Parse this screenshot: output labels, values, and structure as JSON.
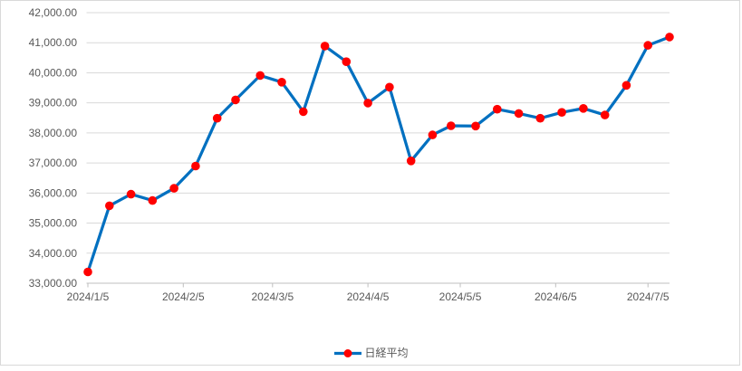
{
  "chart_data": {
    "type": "line",
    "title": "",
    "series": [
      {
        "name": "日経平均",
        "x": [
          "2024/1/5",
          "2024/1/12",
          "2024/1/19",
          "2024/1/26",
          "2024/2/2",
          "2024/2/9",
          "2024/2/16",
          "2024/2/22",
          "2024/3/1",
          "2024/3/8",
          "2024/3/15",
          "2024/3/22",
          "2024/3/29",
          "2024/4/5",
          "2024/4/12",
          "2024/4/19",
          "2024/4/26",
          "2024/5/2",
          "2024/5/10",
          "2024/5/17",
          "2024/5/24",
          "2024/5/31",
          "2024/6/7",
          "2024/6/14",
          "2024/6/21",
          "2024/6/28",
          "2024/7/5",
          "2024/7/12"
        ],
        "values": [
          33377.42,
          35577.11,
          35963.27,
          35751.07,
          36158.02,
          36897.42,
          38487.24,
          39098.68,
          39910.82,
          39688.94,
          38707.64,
          40888.43,
          40369.44,
          38992.08,
          39523.55,
          37068.35,
          37934.76,
          38236.07,
          38229.11,
          38787.38,
          38646.11,
          38487.9,
          38683.93,
          38814.56,
          38596.47,
          39583.08,
          40912.37,
          41190.68
        ]
      }
    ],
    "x_axis": {
      "range": [
        "2024/1/5",
        "2024/7/12"
      ],
      "tick_labels": [
        "2024/1/5",
        "2024/2/5",
        "2024/3/5",
        "2024/4/5",
        "2024/5/5",
        "2024/6/5",
        "2024/7/5"
      ]
    },
    "y_axis": {
      "min": 33000,
      "max": 42000,
      "step": 1000,
      "tick_labels": [
        "33,000.00",
        "34,000.00",
        "35,000.00",
        "36,000.00",
        "37,000.00",
        "38,000.00",
        "39,000.00",
        "40,000.00",
        "41,000.00",
        "42,000.00"
      ]
    },
    "legend": {
      "position": "bottom",
      "entries": [
        "日経平均"
      ]
    },
    "grid": true,
    "colors": {
      "line": "#0070C0",
      "marker": "#FF0000",
      "grid": "#D9D9D9",
      "axis": "#BFBFBF",
      "text": "#595959",
      "border": "#D9D9D9",
      "background": "#FFFFFF"
    }
  }
}
